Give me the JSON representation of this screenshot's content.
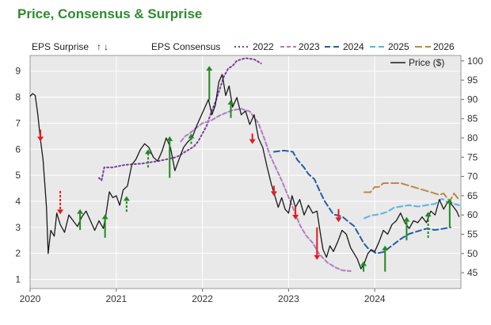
{
  "title": "Price, Consensus & Surprise",
  "chart_data": {
    "type": "line",
    "title": "Price, Consensus & Surprise",
    "x_tick_labels": [
      "2020",
      "2021",
      "2022",
      "2023",
      "2024"
    ],
    "x_range": [
      2020.0,
      2025.0
    ],
    "y_left": {
      "label": "",
      "range": [
        0.65,
        9.6
      ],
      "ticks": [
        1,
        2,
        3,
        4,
        5,
        6,
        7,
        8,
        9
      ]
    },
    "y_right": {
      "label": "",
      "range": [
        40.9,
        101.4
      ],
      "ticks": [
        45,
        50,
        55,
        60,
        65,
        70,
        75,
        80,
        85,
        90,
        95,
        100
      ]
    },
    "legend": {
      "eps_surprise_label": "EPS Surprise",
      "up_arrow": "↑",
      "down_arrow": "↓",
      "eps_consensus_label": "EPS Consensus",
      "price_label": "Price ($)",
      "consensus_years": [
        "2022",
        "2023",
        "2024",
        "2025",
        "2026"
      ]
    },
    "grid": true,
    "colors": {
      "price": "#1a1a1a",
      "up": "#1f8a1f",
      "down": "#e41a1c",
      "c2022": "#7a3e9d",
      "c2023": "#b07cc6",
      "c2024": "#1f5fa8",
      "c2025": "#5ab4e0",
      "c2026": "#b88a4a",
      "plot_bg": "#e9e9e9",
      "grid": "#ffffff"
    },
    "price_series": {
      "name": "Price ($)",
      "axis": "right",
      "points": [
        [
          2020.0,
          90.8
        ],
        [
          2020.03,
          91.5
        ],
        [
          2020.06,
          91.0
        ],
        [
          2020.09,
          86.0
        ],
        [
          2020.12,
          79.5
        ],
        [
          2020.15,
          74.5
        ],
        [
          2020.19,
          62.0
        ],
        [
          2020.21,
          50.0
        ],
        [
          2020.24,
          56.0
        ],
        [
          2020.28,
          54.5
        ],
        [
          2020.31,
          60.5
        ],
        [
          2020.35,
          57.5
        ],
        [
          2020.4,
          55.5
        ],
        [
          2020.45,
          60.0
        ],
        [
          2020.5,
          58.5
        ],
        [
          2020.55,
          57.0
        ],
        [
          2020.6,
          59.5
        ],
        [
          2020.65,
          61.0
        ],
        [
          2020.7,
          58.5
        ],
        [
          2020.75,
          56.0
        ],
        [
          2020.8,
          58.5
        ],
        [
          2020.85,
          56.5
        ],
        [
          2020.88,
          60.0
        ],
        [
          2020.92,
          66.0
        ],
        [
          2020.96,
          64.5
        ],
        [
          2021.0,
          65.0
        ],
        [
          2021.04,
          62.5
        ],
        [
          2021.08,
          66.5
        ],
        [
          2021.13,
          67.5
        ],
        [
          2021.18,
          73.0
        ],
        [
          2021.23,
          74.5
        ],
        [
          2021.28,
          77.0
        ],
        [
          2021.33,
          78.5
        ],
        [
          2021.38,
          77.5
        ],
        [
          2021.43,
          75.0
        ],
        [
          2021.48,
          74.0
        ],
        [
          2021.53,
          76.5
        ],
        [
          2021.58,
          80.0
        ],
        [
          2021.63,
          77.5
        ],
        [
          2021.68,
          71.5
        ],
        [
          2021.73,
          74.5
        ],
        [
          2021.78,
          77.5
        ],
        [
          2021.83,
          79.0
        ],
        [
          2021.88,
          80.0
        ],
        [
          2021.93,
          83.0
        ],
        [
          2021.98,
          85.5
        ],
        [
          2022.03,
          88.0
        ],
        [
          2022.07,
          90.0
        ],
        [
          2022.11,
          86.0
        ],
        [
          2022.15,
          88.5
        ],
        [
          2022.19,
          94.5
        ],
        [
          2022.23,
          96.5
        ],
        [
          2022.27,
          91.0
        ],
        [
          2022.31,
          93.5
        ],
        [
          2022.35,
          88.0
        ],
        [
          2022.4,
          90.5
        ],
        [
          2022.45,
          86.0
        ],
        [
          2022.5,
          87.0
        ],
        [
          2022.55,
          83.5
        ],
        [
          2022.6,
          86.0
        ],
        [
          2022.65,
          80.0
        ],
        [
          2022.7,
          77.5
        ],
        [
          2022.75,
          72.5
        ],
        [
          2022.8,
          68.0
        ],
        [
          2022.84,
          65.0
        ],
        [
          2022.88,
          62.0
        ],
        [
          2022.92,
          64.5
        ],
        [
          2022.96,
          61.5
        ],
        [
          2023.0,
          60.5
        ],
        [
          2023.04,
          65.0
        ],
        [
          2023.08,
          62.0
        ],
        [
          2023.13,
          64.0
        ],
        [
          2023.18,
          60.0
        ],
        [
          2023.23,
          62.5
        ],
        [
          2023.28,
          60.5
        ],
        [
          2023.33,
          61.0
        ],
        [
          2023.37,
          55.0
        ],
        [
          2023.4,
          51.0
        ],
        [
          2023.44,
          49.0
        ],
        [
          2023.48,
          52.0
        ],
        [
          2023.52,
          50.5
        ],
        [
          2023.57,
          53.0
        ],
        [
          2023.62,
          56.0
        ],
        [
          2023.67,
          55.0
        ],
        [
          2023.72,
          51.5
        ],
        [
          2023.76,
          50.0
        ],
        [
          2023.8,
          48.5
        ],
        [
          2023.84,
          46.0
        ],
        [
          2023.88,
          47.5
        ],
        [
          2023.92,
          50.0
        ],
        [
          2023.96,
          51.0
        ],
        [
          2024.0,
          50.5
        ],
        [
          2024.05,
          53.0
        ],
        [
          2024.1,
          56.0
        ],
        [
          2024.15,
          55.0
        ],
        [
          2024.2,
          57.5
        ],
        [
          2024.25,
          58.5
        ],
        [
          2024.3,
          60.5
        ],
        [
          2024.35,
          58.0
        ],
        [
          2024.4,
          56.5
        ],
        [
          2024.45,
          58.5
        ],
        [
          2024.5,
          58.0
        ],
        [
          2024.55,
          59.5
        ],
        [
          2024.6,
          58.0
        ],
        [
          2024.65,
          61.0
        ],
        [
          2024.7,
          60.0
        ],
        [
          2024.75,
          64.0
        ],
        [
          2024.8,
          61.5
        ],
        [
          2024.85,
          63.5
        ],
        [
          2024.9,
          62.5
        ],
        [
          2024.95,
          61.0
        ],
        [
          2024.98,
          59.5
        ]
      ]
    },
    "consensus_series": [
      {
        "name": "2022",
        "axis": "left",
        "points": [
          [
            2020.8,
            4.9
          ],
          [
            2020.83,
            4.8
          ],
          [
            2020.86,
            5.3
          ],
          [
            2020.95,
            5.3
          ],
          [
            2021.1,
            5.4
          ],
          [
            2021.3,
            5.45
          ],
          [
            2021.5,
            5.55
          ],
          [
            2021.7,
            5.7
          ],
          [
            2021.8,
            5.9
          ],
          [
            2021.9,
            6.1
          ],
          [
            2021.95,
            6.3
          ],
          [
            2022.0,
            6.6
          ],
          [
            2022.05,
            6.9
          ],
          [
            2022.1,
            7.4
          ],
          [
            2022.15,
            7.8
          ],
          [
            2022.2,
            8.3
          ],
          [
            2022.25,
            8.8
          ],
          [
            2022.3,
            9.1
          ],
          [
            2022.35,
            9.2
          ],
          [
            2022.4,
            9.4
          ],
          [
            2022.5,
            9.5
          ],
          [
            2022.6,
            9.45
          ],
          [
            2022.68,
            9.3
          ]
        ]
      },
      {
        "name": "2023",
        "axis": "left",
        "points": [
          [
            2021.75,
            6.3
          ],
          [
            2021.8,
            6.5
          ],
          [
            2021.85,
            6.6
          ],
          [
            2021.9,
            6.75
          ],
          [
            2022.0,
            7.0
          ],
          [
            2022.1,
            7.1
          ],
          [
            2022.2,
            7.3
          ],
          [
            2022.35,
            7.5
          ],
          [
            2022.45,
            7.55
          ],
          [
            2022.55,
            7.45
          ],
          [
            2022.65,
            7.0
          ],
          [
            2022.72,
            6.4
          ],
          [
            2022.78,
            5.8
          ],
          [
            2022.85,
            5.3
          ],
          [
            2022.92,
            4.8
          ],
          [
            2022.97,
            4.4
          ],
          [
            2023.02,
            4.0
          ],
          [
            2023.07,
            3.6
          ],
          [
            2023.13,
            3.1
          ],
          [
            2023.2,
            2.7
          ],
          [
            2023.28,
            2.4
          ],
          [
            2023.35,
            2.0
          ],
          [
            2023.45,
            1.65
          ],
          [
            2023.55,
            1.45
          ],
          [
            2023.62,
            1.35
          ],
          [
            2023.72,
            1.32
          ]
        ]
      },
      {
        "name": "2024",
        "axis": "left",
        "points": [
          [
            2022.83,
            5.9
          ],
          [
            2022.95,
            5.95
          ],
          [
            2023.05,
            5.9
          ],
          [
            2023.1,
            5.6
          ],
          [
            2023.18,
            5.3
          ],
          [
            2023.23,
            5.05
          ],
          [
            2023.3,
            4.85
          ],
          [
            2023.36,
            4.4
          ],
          [
            2023.42,
            4.0
          ],
          [
            2023.48,
            3.7
          ],
          [
            2023.52,
            3.5
          ],
          [
            2023.58,
            3.45
          ],
          [
            2023.63,
            3.4
          ],
          [
            2023.7,
            3.2
          ],
          [
            2023.76,
            3.05
          ],
          [
            2023.82,
            2.7
          ],
          [
            2023.87,
            2.4
          ],
          [
            2023.92,
            2.2
          ],
          [
            2023.97,
            2.1
          ],
          [
            2024.02,
            2.0
          ],
          [
            2024.1,
            2.05
          ],
          [
            2024.2,
            2.3
          ],
          [
            2024.3,
            2.55
          ],
          [
            2024.4,
            2.75
          ],
          [
            2024.5,
            2.85
          ],
          [
            2024.6,
            2.95
          ],
          [
            2024.7,
            2.9
          ],
          [
            2024.8,
            2.95
          ],
          [
            2024.88,
            3.0
          ]
        ]
      },
      {
        "name": "2025",
        "axis": "left",
        "points": [
          [
            2023.88,
            3.35
          ],
          [
            2023.95,
            3.45
          ],
          [
            2024.05,
            3.5
          ],
          [
            2024.15,
            3.6
          ],
          [
            2024.22,
            3.75
          ],
          [
            2024.3,
            3.8
          ],
          [
            2024.4,
            3.85
          ],
          [
            2024.5,
            3.8
          ],
          [
            2024.6,
            3.85
          ],
          [
            2024.7,
            3.9
          ],
          [
            2024.78,
            4.1
          ],
          [
            2024.85,
            3.95
          ],
          [
            2024.92,
            3.9
          ],
          [
            2024.98,
            3.85
          ]
        ]
      },
      {
        "name": "2026",
        "axis": "left",
        "points": [
          [
            2023.88,
            4.35
          ],
          [
            2023.95,
            4.35
          ],
          [
            2024.0,
            4.55
          ],
          [
            2024.05,
            4.55
          ],
          [
            2024.1,
            4.7
          ],
          [
            2024.3,
            4.7
          ],
          [
            2024.75,
            4.25
          ],
          [
            2024.8,
            4.3
          ],
          [
            2024.87,
            4.0
          ],
          [
            2024.92,
            4.3
          ],
          [
            2024.97,
            4.1
          ]
        ]
      }
    ],
    "surprises": [
      {
        "x": 2020.12,
        "dir": "down",
        "from": 6.75,
        "to": 6.3,
        "style": "solid"
      },
      {
        "x": 2020.35,
        "dir": "down",
        "from": 4.4,
        "to": 3.5,
        "style": "dashed"
      },
      {
        "x": 2020.58,
        "dir": "up",
        "from": 2.9,
        "to": 3.7,
        "style": "solid"
      },
      {
        "x": 2020.87,
        "dir": "up",
        "from": 2.6,
        "to": 3.5,
        "style": "solid"
      },
      {
        "x": 2021.12,
        "dir": "up",
        "from": 3.6,
        "to": 4.2,
        "style": "dashed"
      },
      {
        "x": 2021.37,
        "dir": "up",
        "from": 5.3,
        "to": 6.0,
        "style": "dashed"
      },
      {
        "x": 2021.62,
        "dir": "up",
        "from": 4.9,
        "to": 6.5,
        "style": "solid"
      },
      {
        "x": 2021.87,
        "dir": "up",
        "from": 6.2,
        "to": 6.6,
        "style": "dashed"
      },
      {
        "x": 2022.08,
        "dir": "up",
        "from": 7.9,
        "to": 9.2,
        "style": "solid"
      },
      {
        "x": 2022.33,
        "dir": "up",
        "from": 7.2,
        "to": 7.9,
        "style": "solid"
      },
      {
        "x": 2022.58,
        "dir": "down",
        "from": 6.6,
        "to": 6.2,
        "style": "solid"
      },
      {
        "x": 2022.83,
        "dir": "down",
        "from": 4.6,
        "to": 4.2,
        "style": "solid"
      },
      {
        "x": 2023.08,
        "dir": "down",
        "from": 3.8,
        "to": 3.3,
        "style": "solid"
      },
      {
        "x": 2023.33,
        "dir": "down",
        "from": 3.0,
        "to": 1.75,
        "style": "solid"
      },
      {
        "x": 2023.58,
        "dir": "down",
        "from": 3.7,
        "to": 3.2,
        "style": "solid"
      },
      {
        "x": 2023.87,
        "dir": "up",
        "from": 1.3,
        "to": 1.7,
        "style": "solid"
      },
      {
        "x": 2024.12,
        "dir": "up",
        "from": 1.3,
        "to": 2.3,
        "style": "solid"
      },
      {
        "x": 2024.37,
        "dir": "up",
        "from": 2.5,
        "to": 3.4,
        "style": "solid"
      },
      {
        "x": 2024.62,
        "dir": "up",
        "from": 2.6,
        "to": 3.6,
        "style": "dashed"
      },
      {
        "x": 2024.87,
        "dir": "up",
        "from": 3.0,
        "to": 4.1,
        "style": "solid"
      }
    ]
  }
}
